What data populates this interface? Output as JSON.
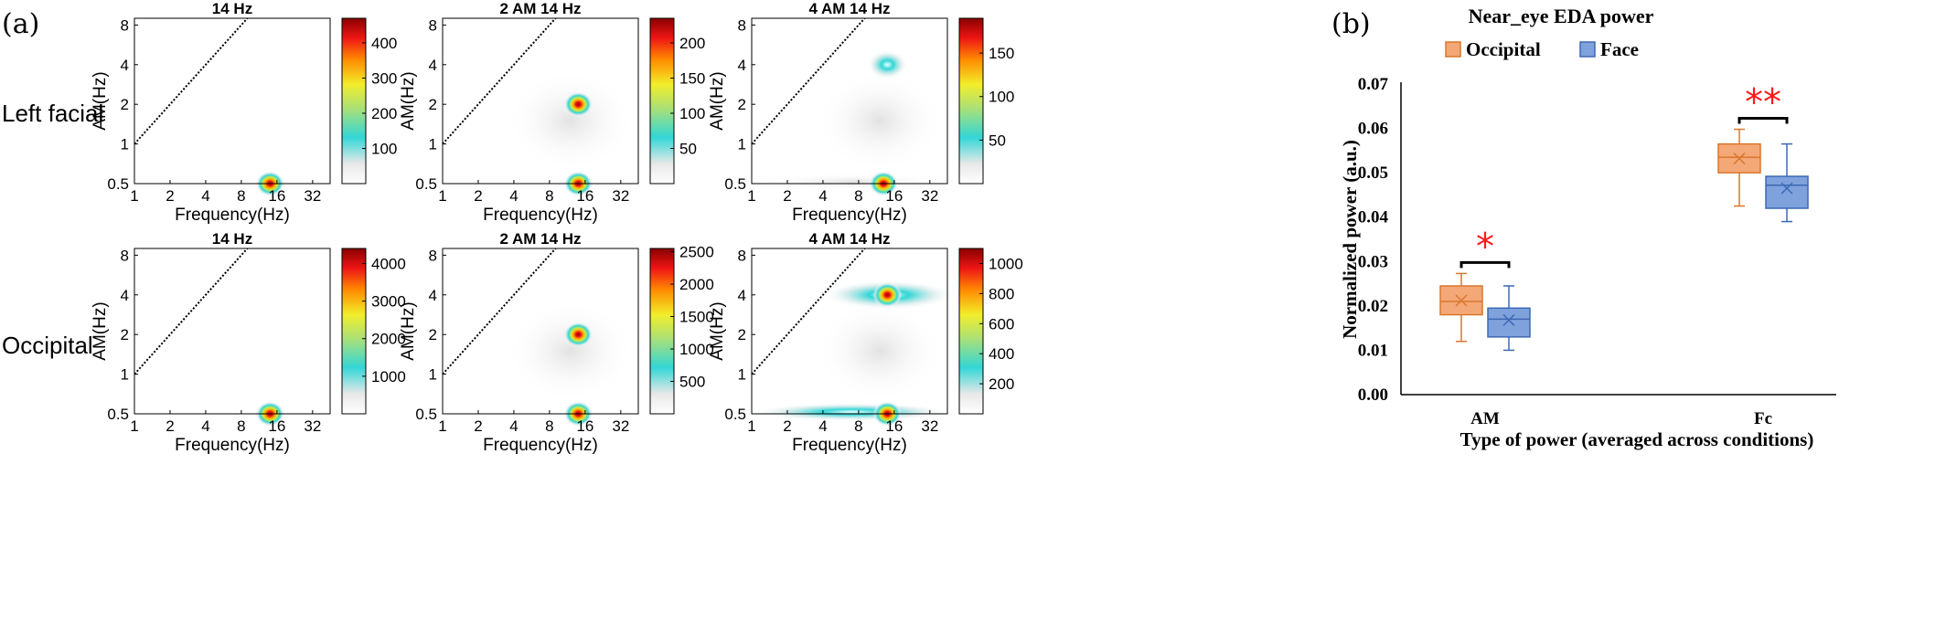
{
  "panel_a_label": "(a)",
  "panel_b_label": "(b)",
  "row_labels": [
    "Left facial",
    "Occipital"
  ],
  "chart_data": [
    {
      "type": "heatmap",
      "row": "Left facial",
      "title": "14 Hz",
      "xlabel": "Frequency(Hz)",
      "ylabel": "AM(Hz)",
      "xticks": [
        "1",
        "2",
        "4",
        "8",
        "16",
        "32"
      ],
      "yticks": [
        "0.5",
        "1",
        "2",
        "4",
        "8"
      ],
      "colorbar_ticks": [
        "100",
        "200",
        "300",
        "400"
      ],
      "colorbar_max": 470,
      "peaks": [
        {
          "freq": 14,
          "am": 0.5,
          "value": 470
        }
      ],
      "diagonal": true
    },
    {
      "type": "heatmap",
      "row": "Left facial",
      "title": "2 AM 14 Hz",
      "xlabel": "Frequency(Hz)",
      "ylabel": "AM(Hz)",
      "xticks": [
        "1",
        "2",
        "4",
        "8",
        "16",
        "32"
      ],
      "yticks": [
        "0.5",
        "1",
        "2",
        "4",
        "8"
      ],
      "colorbar_ticks": [
        "50",
        "100",
        "150",
        "200"
      ],
      "colorbar_max": 235,
      "peaks": [
        {
          "freq": 14,
          "am": 2,
          "value": 235
        },
        {
          "freq": 14,
          "am": 0.5,
          "value": 190
        }
      ],
      "diagonal": true
    },
    {
      "type": "heatmap",
      "row": "Left facial",
      "title": "4 AM 14 Hz",
      "xlabel": "Frequency(Hz)",
      "ylabel": "AM(Hz)",
      "xticks": [
        "1",
        "2",
        "4",
        "8",
        "16",
        "32"
      ],
      "yticks": [
        "0.5",
        "1",
        "2",
        "4",
        "8"
      ],
      "colorbar_ticks": [
        "50",
        "100",
        "150"
      ],
      "colorbar_max": 190,
      "peaks": [
        {
          "freq": 14,
          "am": 4,
          "value": 80
        },
        {
          "freq": 13,
          "am": 0.5,
          "value": 190
        }
      ],
      "diagonal": true
    },
    {
      "type": "heatmap",
      "row": "Occipital",
      "title": "14 Hz",
      "xlabel": "Frequency(Hz)",
      "ylabel": "AM(Hz)",
      "xticks": [
        "1",
        "2",
        "4",
        "8",
        "16",
        "32"
      ],
      "yticks": [
        "0.5",
        "1",
        "2",
        "4",
        "8"
      ],
      "colorbar_ticks": [
        "1000",
        "2000",
        "3000",
        "4000"
      ],
      "colorbar_max": 4400,
      "peaks": [
        {
          "freq": 14,
          "am": 0.5,
          "value": 4400
        }
      ],
      "diagonal": true
    },
    {
      "type": "heatmap",
      "row": "Occipital",
      "title": "2 AM 14 Hz",
      "xlabel": "Frequency(Hz)",
      "ylabel": "AM(Hz)",
      "xticks": [
        "1",
        "2",
        "4",
        "8",
        "16",
        "32"
      ],
      "yticks": [
        "0.5",
        "1",
        "2",
        "4",
        "8"
      ],
      "colorbar_ticks": [
        "500",
        "1000",
        "1500",
        "2000",
        "2500"
      ],
      "colorbar_max": 2550,
      "peaks": [
        {
          "freq": 14,
          "am": 2,
          "value": 2400
        },
        {
          "freq": 14,
          "am": 0.5,
          "value": 2500
        }
      ],
      "diagonal": true
    },
    {
      "type": "heatmap",
      "row": "Occipital",
      "title": "4 AM 14 Hz",
      "xlabel": "Frequency(Hz)",
      "ylabel": "AM(Hz)",
      "xticks": [
        "1",
        "2",
        "4",
        "8",
        "16",
        "32"
      ],
      "yticks": [
        "0.5",
        "1",
        "2",
        "4",
        "8"
      ],
      "colorbar_ticks": [
        "200",
        "400",
        "600",
        "800",
        "1000"
      ],
      "colorbar_max": 1100,
      "peaks": [
        {
          "freq": 14,
          "am": 4,
          "value": 950
        },
        {
          "freq": 14,
          "am": 0.5,
          "value": 1100
        }
      ],
      "diagonal": true
    },
    {
      "type": "box",
      "title": "Near_eye EDA power",
      "xlabel": "Type of power (averaged across conditions)",
      "ylabel": "Normalized power (a.u.)",
      "ylim": [
        0,
        0.07
      ],
      "yticks": [
        "0.00",
        "0.01",
        "0.02",
        "0.03",
        "0.04",
        "0.05",
        "0.06",
        "0.07"
      ],
      "categories": [
        "AM",
        "Fc"
      ],
      "legend_position": "top",
      "series": [
        {
          "name": "Occipital",
          "color": "#f4a877",
          "edge": "#d9772e",
          "boxes": [
            {
              "min": 0.012,
              "q1": 0.018,
              "median": 0.021,
              "q3": 0.0245,
              "max": 0.0273,
              "mean": 0.0212
            },
            {
              "min": 0.0425,
              "q1": 0.05,
              "median": 0.0535,
              "q3": 0.0565,
              "max": 0.0598,
              "mean": 0.0532
            }
          ]
        },
        {
          "name": "Face",
          "color": "#7fa2dc",
          "edge": "#3d68b5",
          "boxes": [
            {
              "min": 0.01,
              "q1": 0.013,
              "median": 0.017,
              "q3": 0.0195,
              "max": 0.0245,
              "mean": 0.0168
            },
            {
              "min": 0.039,
              "q1": 0.042,
              "median": 0.0472,
              "q3": 0.0492,
              "max": 0.0565,
              "mean": 0.0465
            }
          ]
        }
      ],
      "significance": [
        {
          "category": "AM",
          "label": "*"
        },
        {
          "category": "Fc",
          "label": "**"
        }
      ]
    }
  ]
}
